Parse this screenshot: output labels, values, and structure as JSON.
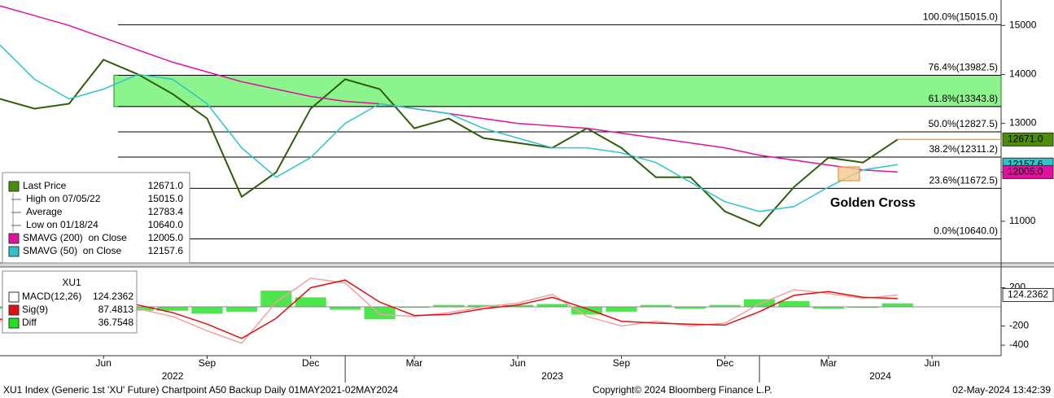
{
  "chart_data": [
    {
      "type": "line",
      "x": [
        "2022-03",
        "2022-04",
        "2022-05",
        "2022-06",
        "2022-07",
        "2022-08",
        "2022-09",
        "2022-10",
        "2022-11",
        "2022-12",
        "2023-01",
        "2023-02",
        "2023-03",
        "2023-04",
        "2023-05",
        "2023-06",
        "2023-07",
        "2023-08",
        "2023-09",
        "2023-10",
        "2023-11",
        "2023-12",
        "2024-01",
        "2024-02",
        "2024-03",
        "2024-04",
        "2024-05"
      ],
      "xlim": [
        "2022-03",
        "2024-08"
      ],
      "xticks": [
        {
          "value": "2022-06",
          "label": "Jun"
        },
        {
          "value": "2022-09",
          "label": "Sep"
        },
        {
          "value": "2022-12",
          "label": "Dec"
        },
        {
          "value": "2023-03",
          "label": "Mar"
        },
        {
          "value": "2023-06",
          "label": "Jun"
        },
        {
          "value": "2023-09",
          "label": "Sep"
        },
        {
          "value": "2023-12",
          "label": "Dec"
        },
        {
          "value": "2024-03",
          "label": "Mar"
        },
        {
          "value": "2024-06",
          "label": "Jun"
        }
      ],
      "years": [
        2022,
        2023,
        2024
      ],
      "ylim": [
        10150,
        15520
      ],
      "yticks": [
        11000,
        12000,
        13000,
        14000,
        15000
      ],
      "series": [
        {
          "name": "Last Price",
          "color": "#2f5e0a",
          "legend_color": "#4c8c0c",
          "last_label": "12671.0",
          "box_color": "#4c8c0c",
          "box_text": "#ffffff",
          "last_line_color": "#f0a040",
          "values": [
            13500,
            13300,
            13400,
            14300,
            14000,
            13600,
            13100,
            11500,
            12000,
            13300,
            13900,
            13700,
            12900,
            13100,
            12700,
            12600,
            12500,
            12900,
            12500,
            11900,
            11900,
            11200,
            10900,
            11700,
            12300,
            12200,
            12671
          ]
        },
        {
          "name": "SMAVG (200)  on Close",
          "color": "#e0119d",
          "last_label": "12005.0",
          "box_color": "#e0119d",
          "box_text": "#ffffff",
          "values": [
            15400,
            15200,
            15000,
            14750,
            14500,
            14250,
            14050,
            13850,
            13700,
            13550,
            13450,
            13400,
            13300,
            13200,
            13100,
            13000,
            12950,
            12900,
            12800,
            12700,
            12600,
            12500,
            12350,
            12250,
            12150,
            12050,
            12005
          ]
        },
        {
          "name": "SMAVG (50)  on Close",
          "color": "#2ec4c8",
          "last_label": "12157.6",
          "box_color": "#2ec4c8",
          "box_text": "#000000",
          "values": [
            14600,
            13900,
            13500,
            13700,
            14000,
            13900,
            13400,
            12500,
            11900,
            12300,
            13000,
            13400,
            13300,
            13200,
            12900,
            12700,
            12500,
            12500,
            12400,
            12200,
            11800,
            11400,
            11200,
            11300,
            11700,
            12050,
            12158
          ]
        }
      ],
      "stats": [
        {
          "label": "High on 07/05/22",
          "value": "15015.0"
        },
        {
          "label": "Average",
          "value": "12783.4"
        },
        {
          "label": "Low on 01/18/24",
          "value": "10640.0"
        }
      ],
      "fib_levels": [
        {
          "value": 15015,
          "label": "100.0%(15015.0)"
        },
        {
          "value": 13982.5,
          "label": "76.4%(13982.5)"
        },
        {
          "value": 13343.8,
          "label": "61.8%(13343.8)"
        },
        {
          "value": 12827.5,
          "label": "50.0%(12827.5)"
        },
        {
          "value": 12311.2,
          "label": "38.2%(12311.2)"
        },
        {
          "value": 11672.5,
          "label": "23.6%(11672.5)"
        },
        {
          "value": 10640,
          "label": "0.0%(10640.0)"
        }
      ],
      "zone_color": "#66f066",
      "annotation": "Golden Cross"
    },
    {
      "type": "line",
      "title": "XU1",
      "x": [
        "2022-03",
        "2022-04",
        "2022-05",
        "2022-06",
        "2022-07",
        "2022-08",
        "2022-09",
        "2022-10",
        "2022-11",
        "2022-12",
        "2023-01",
        "2023-02",
        "2023-03",
        "2023-04",
        "2023-05",
        "2023-06",
        "2023-07",
        "2023-08",
        "2023-09",
        "2023-10",
        "2023-11",
        "2023-12",
        "2024-01",
        "2024-02",
        "2024-03",
        "2024-04",
        "2024-05"
      ],
      "xlim": [
        "2022-03",
        "2024-08"
      ],
      "ylim": [
        -510,
        400
      ],
      "yticks": [
        -400,
        -200,
        200
      ],
      "series": [
        {
          "name": "MACD(12,26)",
          "color": "#f4a0a0",
          "legend_color": "#ffffff",
          "last_label": "124.2362",
          "box_color": "#ffffff",
          "box_text": "#000000",
          "values": [
            -150,
            -80,
            80,
            120,
            -20,
            -100,
            -250,
            -380,
            50,
            300,
            250,
            -80,
            -100,
            -60,
            0,
            40,
            130,
            -100,
            -200,
            -150,
            -200,
            -170,
            30,
            180,
            140,
            90,
            124
          ]
        },
        {
          "name": "Sig(9)",
          "color": "#e01010",
          "last_label": "87.4813",
          "values": [
            -130,
            -110,
            30,
            110,
            20,
            -60,
            -180,
            -330,
            -120,
            200,
            280,
            50,
            -90,
            -80,
            -20,
            20,
            100,
            -20,
            -150,
            -170,
            -180,
            -190,
            -50,
            120,
            160,
            100,
            87
          ]
        },
        {
          "name": "Diff",
          "color": "#22e022",
          "kind": "bar",
          "last_label": "36.7548",
          "values": [
            -20,
            30,
            50,
            10,
            -40,
            -40,
            -70,
            -50,
            170,
            100,
            -30,
            -130,
            -10,
            20,
            20,
            20,
            30,
            -80,
            -50,
            20,
            -20,
            20,
            80,
            60,
            -20,
            -10,
            37
          ]
        }
      ]
    }
  ],
  "footer": {
    "left": "XU1 Index (Generic 1st 'XU' Future) Chartpoint A50 Backup  Daily 01MAY2021-02MAY2024",
    "center": "Copyright© 2024 Bloomberg Finance L.P.",
    "right": "02-May-2024 13:42:39"
  }
}
